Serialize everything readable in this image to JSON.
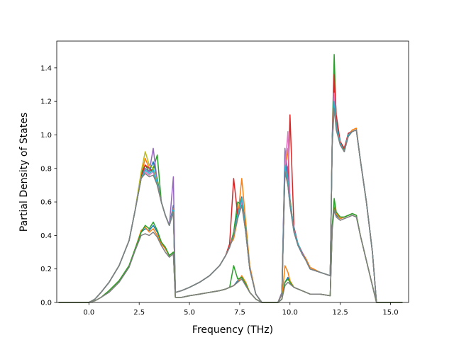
{
  "chart_data": {
    "type": "line",
    "title": "",
    "xlabel": "Frequency (THz)",
    "ylabel": "Partial Density of States",
    "xlim": [
      -1.6,
      15.9
    ],
    "ylim": [
      0.0,
      1.56
    ],
    "xticks": [
      0.0,
      2.5,
      5.0,
      7.5,
      10.0,
      12.5,
      15.0
    ],
    "xtick_labels": [
      "0.0",
      "2.5",
      "5.0",
      "7.5",
      "10.0",
      "12.5",
      "15.0"
    ],
    "yticks": [
      0.0,
      0.2,
      0.4,
      0.6,
      0.8,
      1.0,
      1.2,
      1.4
    ],
    "ytick_labels": [
      "0.0",
      "0.2",
      "0.4",
      "0.6",
      "0.8",
      "1.0",
      "1.2",
      "1.4"
    ],
    "grid": false,
    "legend": "none",
    "x": [
      -1.5,
      -1.0,
      -0.5,
      0.0,
      0.3,
      0.6,
      1.0,
      1.5,
      2.0,
      2.3,
      2.6,
      2.8,
      3.0,
      3.2,
      3.4,
      3.6,
      3.8,
      4.0,
      4.2,
      4.3,
      4.6,
      5.0,
      5.5,
      6.0,
      6.5,
      6.8,
      7.0,
      7.2,
      7.4,
      7.6,
      7.8,
      8.0,
      8.3,
      8.6,
      9.0,
      9.4,
      9.6,
      9.75,
      9.9,
      10.0,
      10.2,
      10.4,
      10.6,
      10.8,
      11.0,
      11.5,
      12.0,
      12.1,
      12.2,
      12.3,
      12.5,
      12.7,
      12.9,
      13.1,
      13.3,
      13.5,
      13.8,
      14.1,
      14.3,
      14.6,
      15.0,
      15.6
    ],
    "series": [
      {
        "color": "#1f77b4",
        "values": [
          0,
          0,
          0,
          0,
          0.02,
          0.06,
          0.12,
          0.22,
          0.37,
          0.55,
          0.75,
          0.8,
          0.78,
          0.84,
          0.74,
          0.6,
          0.52,
          0.46,
          0.58,
          0.06,
          0.07,
          0.09,
          0.12,
          0.16,
          0.22,
          0.28,
          0.33,
          0.4,
          0.55,
          0.63,
          0.45,
          0.2,
          0.05,
          0,
          0,
          0,
          0.05,
          0.9,
          0.7,
          0.58,
          0.42,
          0.34,
          0.29,
          0.25,
          0.2,
          0.18,
          0.16,
          0.96,
          1.32,
          1.1,
          0.95,
          0.9,
          1.0,
          1.02,
          1.03,
          0.85,
          0.6,
          0.3,
          0,
          0,
          0,
          0
        ]
      },
      {
        "color": "#ff7f0e",
        "values": [
          0,
          0,
          0,
          0,
          0.02,
          0.06,
          0.12,
          0.22,
          0.37,
          0.55,
          0.76,
          0.86,
          0.8,
          0.78,
          0.7,
          0.6,
          0.52,
          0.46,
          0.56,
          0.06,
          0.07,
          0.09,
          0.12,
          0.16,
          0.22,
          0.28,
          0.34,
          0.38,
          0.5,
          0.74,
          0.48,
          0.22,
          0.05,
          0,
          0,
          0,
          0.06,
          0.78,
          0.92,
          0.6,
          0.44,
          0.35,
          0.3,
          0.26,
          0.21,
          0.18,
          0.16,
          0.95,
          1.2,
          1.05,
          0.96,
          0.92,
          1.0,
          1.03,
          1.04,
          0.85,
          0.6,
          0.3,
          0,
          0,
          0,
          0
        ]
      },
      {
        "color": "#2ca02c",
        "values": [
          0,
          0,
          0,
          0,
          0.02,
          0.06,
          0.12,
          0.22,
          0.37,
          0.55,
          0.77,
          0.82,
          0.78,
          0.8,
          0.88,
          0.6,
          0.52,
          0.46,
          0.55,
          0.06,
          0.07,
          0.09,
          0.12,
          0.16,
          0.22,
          0.28,
          0.33,
          0.42,
          0.6,
          0.58,
          0.44,
          0.2,
          0.05,
          0,
          0,
          0,
          0.05,
          0.85,
          0.8,
          0.62,
          0.43,
          0.35,
          0.29,
          0.25,
          0.2,
          0.18,
          0.16,
          0.97,
          1.48,
          1.08,
          0.95,
          0.91,
          1.0,
          1.02,
          1.03,
          0.85,
          0.6,
          0.3,
          0,
          0,
          0,
          0
        ]
      },
      {
        "color": "#d62728",
        "values": [
          0,
          0,
          0,
          0,
          0.02,
          0.06,
          0.12,
          0.22,
          0.37,
          0.55,
          0.75,
          0.82,
          0.8,
          0.78,
          0.72,
          0.6,
          0.52,
          0.46,
          0.55,
          0.06,
          0.07,
          0.09,
          0.12,
          0.16,
          0.22,
          0.28,
          0.35,
          0.74,
          0.52,
          0.6,
          0.42,
          0.2,
          0.05,
          0,
          0,
          0,
          0.05,
          0.8,
          0.7,
          1.12,
          0.45,
          0.35,
          0.3,
          0.25,
          0.2,
          0.18,
          0.16,
          0.96,
          1.36,
          1.12,
          0.96,
          0.92,
          1.01,
          1.02,
          1.03,
          0.85,
          0.6,
          0.3,
          0,
          0,
          0,
          0
        ]
      },
      {
        "color": "#9467bd",
        "values": [
          0,
          0,
          0,
          0,
          0.02,
          0.06,
          0.12,
          0.22,
          0.37,
          0.55,
          0.74,
          0.8,
          0.78,
          0.92,
          0.72,
          0.6,
          0.52,
          0.46,
          0.75,
          0.06,
          0.07,
          0.09,
          0.12,
          0.16,
          0.22,
          0.28,
          0.33,
          0.4,
          0.52,
          0.6,
          0.42,
          0.2,
          0.05,
          0,
          0,
          0,
          0.06,
          0.92,
          0.75,
          0.6,
          0.44,
          0.35,
          0.3,
          0.25,
          0.2,
          0.18,
          0.16,
          0.95,
          1.22,
          1.06,
          0.95,
          0.9,
          1.0,
          1.02,
          1.03,
          0.85,
          0.6,
          0.3,
          0,
          0,
          0,
          0
        ]
      },
      {
        "color": "#bcbd22",
        "values": [
          0,
          0,
          0,
          0,
          0.02,
          0.06,
          0.12,
          0.22,
          0.37,
          0.55,
          0.78,
          0.9,
          0.82,
          0.8,
          0.72,
          0.6,
          0.52,
          0.46,
          0.55,
          0.06,
          0.07,
          0.09,
          0.12,
          0.16,
          0.22,
          0.28,
          0.33,
          0.4,
          0.52,
          0.6,
          0.42,
          0.2,
          0.05,
          0,
          0,
          0,
          0.05,
          0.8,
          0.72,
          0.6,
          0.43,
          0.35,
          0.29,
          0.25,
          0.2,
          0.18,
          0.16,
          0.95,
          1.18,
          1.04,
          0.95,
          0.9,
          1.0,
          1.02,
          1.03,
          0.85,
          0.6,
          0.3,
          0,
          0,
          0,
          0
        ]
      },
      {
        "color": "#e377c2",
        "values": [
          0,
          0,
          0,
          0,
          0.02,
          0.06,
          0.12,
          0.22,
          0.37,
          0.55,
          0.74,
          0.78,
          0.76,
          0.78,
          0.7,
          0.6,
          0.52,
          0.46,
          0.55,
          0.06,
          0.07,
          0.09,
          0.12,
          0.16,
          0.22,
          0.28,
          0.33,
          0.4,
          0.52,
          0.6,
          0.42,
          0.2,
          0.05,
          0,
          0,
          0,
          0.05,
          0.8,
          1.02,
          0.6,
          0.43,
          0.35,
          0.29,
          0.25,
          0.2,
          0.18,
          0.16,
          0.95,
          1.25,
          1.05,
          0.95,
          0.9,
          1.0,
          1.02,
          1.03,
          0.85,
          0.6,
          0.3,
          0,
          0,
          0,
          0
        ]
      },
      {
        "color": "#17becf",
        "values": [
          0,
          0,
          0,
          0,
          0.02,
          0.06,
          0.12,
          0.22,
          0.37,
          0.55,
          0.74,
          0.79,
          0.77,
          0.79,
          0.71,
          0.6,
          0.52,
          0.46,
          0.55,
          0.06,
          0.07,
          0.09,
          0.12,
          0.16,
          0.22,
          0.28,
          0.33,
          0.4,
          0.52,
          0.62,
          0.42,
          0.2,
          0.05,
          0,
          0,
          0,
          0.05,
          0.82,
          0.72,
          0.6,
          0.43,
          0.35,
          0.29,
          0.25,
          0.2,
          0.18,
          0.16,
          0.95,
          1.2,
          1.05,
          0.95,
          0.9,
          1.0,
          1.02,
          1.03,
          0.85,
          0.6,
          0.3,
          0,
          0,
          0,
          0
        ]
      },
      {
        "color": "#7f7f7f",
        "values": [
          0,
          0,
          0,
          0,
          0.02,
          0.06,
          0.12,
          0.22,
          0.37,
          0.55,
          0.74,
          0.77,
          0.75,
          0.76,
          0.7,
          0.6,
          0.52,
          0.46,
          0.54,
          0.06,
          0.07,
          0.09,
          0.12,
          0.16,
          0.22,
          0.28,
          0.33,
          0.4,
          0.5,
          0.58,
          0.42,
          0.2,
          0.05,
          0,
          0,
          0,
          0.05,
          0.78,
          0.7,
          0.58,
          0.42,
          0.34,
          0.29,
          0.25,
          0.2,
          0.18,
          0.16,
          0.94,
          1.16,
          1.03,
          0.94,
          0.9,
          0.99,
          1.02,
          1.03,
          0.85,
          0.6,
          0.3,
          0,
          0,
          0,
          0
        ]
      },
      {
        "color": "#1f77b4",
        "values": [
          0,
          0,
          0,
          0,
          0.01,
          0.03,
          0.07,
          0.13,
          0.22,
          0.32,
          0.42,
          0.44,
          0.43,
          0.46,
          0.42,
          0.36,
          0.32,
          0.28,
          0.3,
          0.03,
          0.03,
          0.04,
          0.05,
          0.06,
          0.07,
          0.08,
          0.09,
          0.1,
          0.13,
          0.15,
          0.11,
          0.06,
          0.02,
          0,
          0,
          0,
          0.02,
          0.12,
          0.15,
          0.12,
          0.09,
          0.08,
          0.07,
          0.06,
          0.05,
          0.05,
          0.04,
          0.45,
          0.58,
          0.52,
          0.5,
          0.51,
          0.52,
          0.53,
          0.52,
          0.4,
          0.25,
          0.1,
          0,
          0,
          0,
          0
        ]
      },
      {
        "color": "#ff7f0e",
        "values": [
          0,
          0,
          0,
          0,
          0.01,
          0.03,
          0.07,
          0.13,
          0.22,
          0.32,
          0.43,
          0.45,
          0.42,
          0.44,
          0.4,
          0.35,
          0.32,
          0.28,
          0.3,
          0.03,
          0.03,
          0.04,
          0.05,
          0.06,
          0.07,
          0.08,
          0.09,
          0.1,
          0.12,
          0.16,
          0.12,
          0.06,
          0.02,
          0,
          0,
          0,
          0.02,
          0.22,
          0.18,
          0.13,
          0.09,
          0.08,
          0.07,
          0.06,
          0.05,
          0.05,
          0.04,
          0.44,
          0.6,
          0.53,
          0.5,
          0.51,
          0.52,
          0.53,
          0.52,
          0.4,
          0.25,
          0.1,
          0,
          0,
          0,
          0
        ]
      },
      {
        "color": "#2ca02c",
        "values": [
          0,
          0,
          0,
          0,
          0.01,
          0.03,
          0.07,
          0.13,
          0.22,
          0.32,
          0.42,
          0.46,
          0.44,
          0.48,
          0.43,
          0.36,
          0.33,
          0.28,
          0.3,
          0.03,
          0.03,
          0.04,
          0.05,
          0.06,
          0.07,
          0.08,
          0.09,
          0.22,
          0.14,
          0.15,
          0.11,
          0.06,
          0.02,
          0,
          0,
          0,
          0.02,
          0.12,
          0.14,
          0.12,
          0.09,
          0.08,
          0.07,
          0.06,
          0.05,
          0.05,
          0.04,
          0.45,
          0.62,
          0.54,
          0.51,
          0.51,
          0.52,
          0.53,
          0.52,
          0.4,
          0.25,
          0.1,
          0,
          0,
          0,
          0
        ]
      },
      {
        "color": "#7f7f7f",
        "values": [
          0,
          0,
          0,
          0,
          0.01,
          0.03,
          0.06,
          0.12,
          0.21,
          0.31,
          0.4,
          0.41,
          0.4,
          0.42,
          0.39,
          0.34,
          0.3,
          0.27,
          0.29,
          0.03,
          0.03,
          0.04,
          0.05,
          0.06,
          0.07,
          0.08,
          0.09,
          0.1,
          0.12,
          0.14,
          0.1,
          0.06,
          0.02,
          0,
          0,
          0,
          0.02,
          0.1,
          0.12,
          0.11,
          0.09,
          0.08,
          0.07,
          0.06,
          0.05,
          0.05,
          0.04,
          0.43,
          0.55,
          0.51,
          0.49,
          0.5,
          0.51,
          0.52,
          0.51,
          0.4,
          0.25,
          0.1,
          0,
          0,
          0,
          0
        ]
      }
    ]
  }
}
